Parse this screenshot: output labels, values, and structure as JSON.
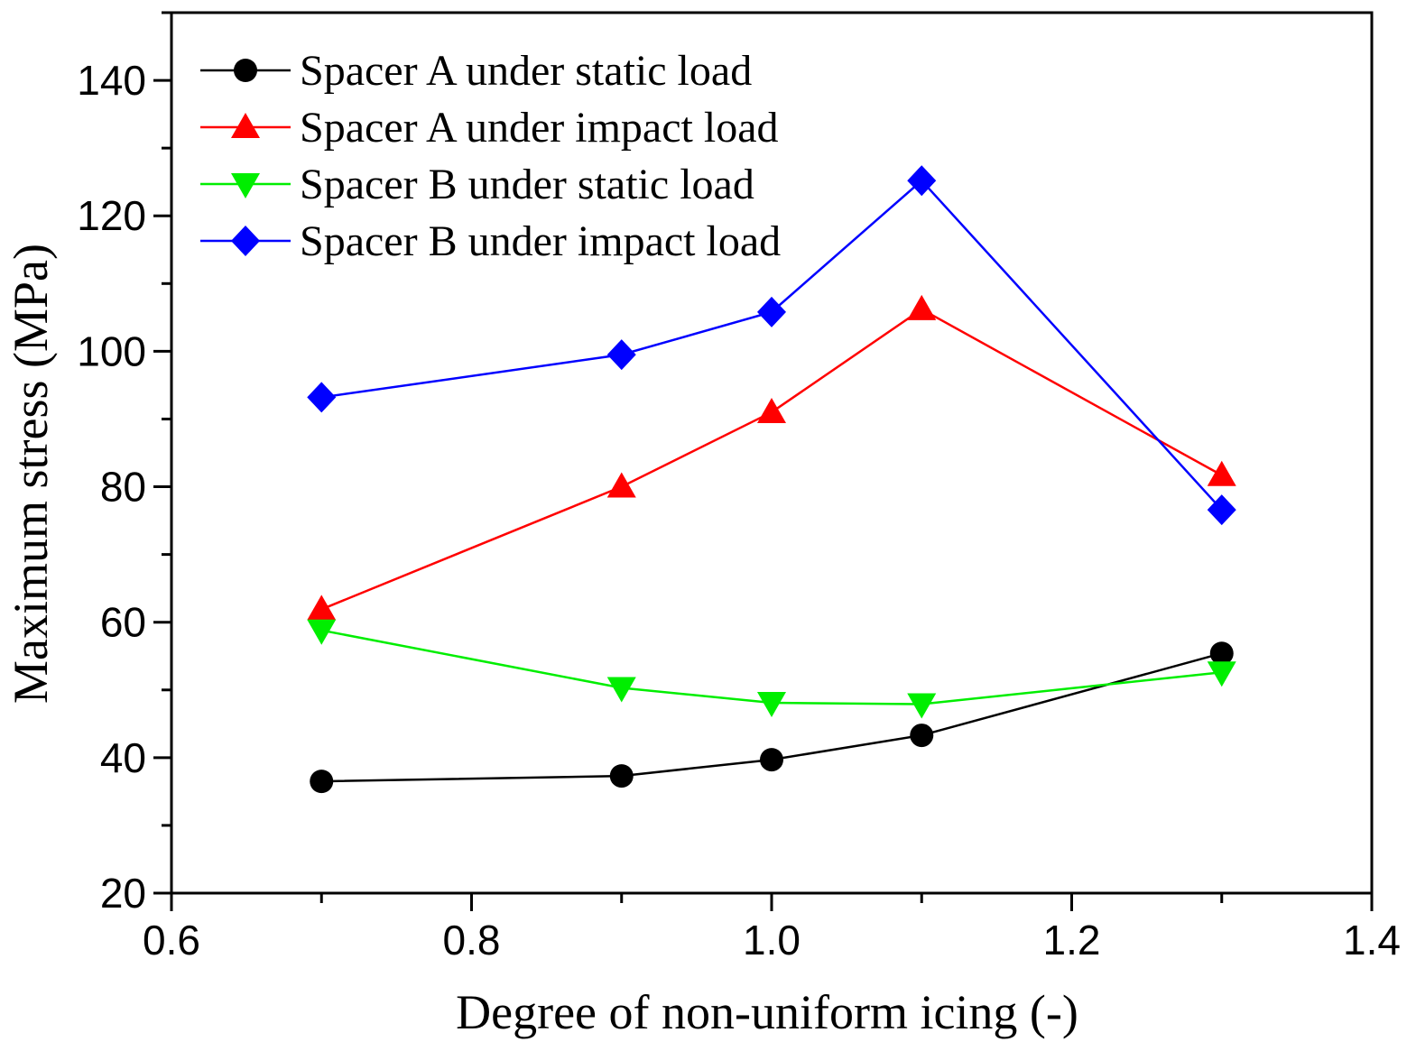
{
  "chart_data": {
    "type": "line",
    "xlabel": "Degree of non-uniform icing (-)",
    "ylabel": "Maximum stress (MPa)",
    "xlim": [
      0.6,
      1.4
    ],
    "ylim": [
      20,
      150
    ],
    "x_ticks": [
      "0.6",
      "0.8",
      "1.0",
      "1.2",
      "1.4"
    ],
    "y_ticks": [
      "20",
      "40",
      "60",
      "80",
      "100",
      "120",
      "140"
    ],
    "legend_position": "top-left",
    "x": [
      0.7,
      0.9,
      1.0,
      1.1,
      1.3
    ],
    "series": [
      {
        "name": "Spacer A under static load",
        "color": "#000000",
        "marker": "circle",
        "values": [
          36.5,
          37.3,
          39.7,
          43.3,
          55.4
        ]
      },
      {
        "name": "Spacer A under impact load",
        "color": "#ff0000",
        "marker": "triangle-up",
        "values": [
          61.9,
          80.0,
          91.0,
          106.2,
          81.7
        ]
      },
      {
        "name": "Spacer B under static load",
        "color": "#00ee00",
        "marker": "triangle-down",
        "values": [
          58.8,
          50.3,
          48.1,
          47.9,
          52.6
        ]
      },
      {
        "name": "Spacer B under impact load",
        "color": "#0000ff",
        "marker": "diamond",
        "values": [
          93.2,
          99.5,
          105.8,
          125.2,
          76.6
        ]
      }
    ]
  }
}
